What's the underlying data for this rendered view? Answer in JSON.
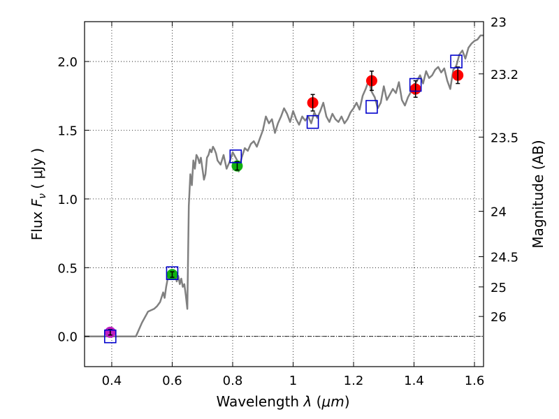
{
  "chart_data": {
    "type": "scatter",
    "title": "",
    "xlabel_prefix": "Wavelength  ",
    "xlabel_symbol": "λ",
    "xlabel_unit_open": " (",
    "xlabel_unit": "μm",
    "xlabel_unit_close": ")",
    "ylabel_prefix": "Flux  ",
    "ylabel_symbol": "F",
    "ylabel_subscript": "ν",
    "ylabel_unit": "  ( μJy )",
    "y2label": "Magnitude (AB)",
    "xlim": [
      0.31,
      1.63
    ],
    "ylim": [
      -0.22,
      2.29
    ],
    "grid": true,
    "x_ticks": [
      {
        "value": 0.4,
        "label": "0.4"
      },
      {
        "value": 0.6,
        "label": "0.6"
      },
      {
        "value": 0.8,
        "label": "0.8"
      },
      {
        "value": 1.0,
        "label": "1"
      },
      {
        "value": 1.2,
        "label": "1.2"
      },
      {
        "value": 1.4,
        "label": "1.4"
      },
      {
        "value": 1.6,
        "label": "1.6"
      }
    ],
    "y_ticks": [
      {
        "value": 0.0,
        "label": "0.0"
      },
      {
        "value": 0.5,
        "label": "0.5"
      },
      {
        "value": 1.0,
        "label": "1.0"
      },
      {
        "value": 1.5,
        "label": "1.5"
      },
      {
        "value": 2.0,
        "label": "2.0"
      }
    ],
    "y2_ticks": [
      {
        "flux": 2.29,
        "label": "23"
      },
      {
        "flux": 1.91,
        "label": "23.2"
      },
      {
        "flux": 1.45,
        "label": "23.5"
      },
      {
        "flux": 0.91,
        "label": "24"
      },
      {
        "flux": 0.58,
        "label": "24.5"
      },
      {
        "flux": 0.36,
        "label": "25"
      },
      {
        "flux": 0.145,
        "label": "26"
      }
    ],
    "zero_line": 0.0,
    "template_spectrum": {
      "name": "best-fit template",
      "color": "#808080",
      "x": [
        0.31,
        0.48,
        0.5,
        0.52,
        0.54,
        0.55,
        0.56,
        0.57,
        0.575,
        0.58,
        0.585,
        0.59,
        0.595,
        0.6,
        0.605,
        0.61,
        0.615,
        0.62,
        0.625,
        0.63,
        0.635,
        0.64,
        0.645,
        0.65,
        0.655,
        0.66,
        0.665,
        0.67,
        0.675,
        0.68,
        0.685,
        0.69,
        0.695,
        0.7,
        0.705,
        0.71,
        0.715,
        0.72,
        0.725,
        0.73,
        0.735,
        0.74,
        0.745,
        0.75,
        0.76,
        0.77,
        0.78,
        0.79,
        0.8,
        0.81,
        0.815,
        0.82,
        0.825,
        0.83,
        0.84,
        0.85,
        0.86,
        0.87,
        0.88,
        0.89,
        0.9,
        0.91,
        0.92,
        0.93,
        0.94,
        0.95,
        0.96,
        0.97,
        0.98,
        0.99,
        1.0,
        1.01,
        1.02,
        1.03,
        1.04,
        1.05,
        1.06,
        1.07,
        1.08,
        1.09,
        1.1,
        1.11,
        1.12,
        1.13,
        1.14,
        1.15,
        1.16,
        1.17,
        1.18,
        1.19,
        1.2,
        1.21,
        1.22,
        1.23,
        1.24,
        1.25,
        1.26,
        1.27,
        1.28,
        1.29,
        1.3,
        1.31,
        1.32,
        1.33,
        1.34,
        1.35,
        1.36,
        1.37,
        1.38,
        1.39,
        1.4,
        1.41,
        1.42,
        1.43,
        1.44,
        1.45,
        1.46,
        1.47,
        1.48,
        1.49,
        1.5,
        1.51,
        1.52,
        1.53,
        1.54,
        1.55,
        1.56,
        1.57,
        1.58,
        1.59,
        1.6,
        1.61,
        1.62,
        1.63
      ],
      "y": [
        0.0,
        0.0,
        0.1,
        0.18,
        0.2,
        0.22,
        0.25,
        0.32,
        0.28,
        0.36,
        0.42,
        0.47,
        0.44,
        0.47,
        0.42,
        0.46,
        0.4,
        0.44,
        0.38,
        0.42,
        0.36,
        0.38,
        0.3,
        0.2,
        0.95,
        1.18,
        1.1,
        1.28,
        1.22,
        1.32,
        1.3,
        1.26,
        1.3,
        1.22,
        1.14,
        1.18,
        1.3,
        1.32,
        1.36,
        1.34,
        1.38,
        1.36,
        1.33,
        1.28,
        1.25,
        1.32,
        1.22,
        1.27,
        1.34,
        1.3,
        1.28,
        1.2,
        1.26,
        1.3,
        1.37,
        1.35,
        1.4,
        1.42,
        1.38,
        1.44,
        1.5,
        1.6,
        1.55,
        1.58,
        1.48,
        1.55,
        1.6,
        1.66,
        1.62,
        1.56,
        1.64,
        1.58,
        1.54,
        1.6,
        1.57,
        1.6,
        1.55,
        1.63,
        1.59,
        1.64,
        1.7,
        1.6,
        1.56,
        1.62,
        1.58,
        1.56,
        1.6,
        1.55,
        1.58,
        1.63,
        1.66,
        1.7,
        1.65,
        1.75,
        1.8,
        1.86,
        1.78,
        1.74,
        1.66,
        1.7,
        1.82,
        1.72,
        1.76,
        1.8,
        1.77,
        1.85,
        1.72,
        1.68,
        1.74,
        1.78,
        1.82,
        1.86,
        1.9,
        1.84,
        1.93,
        1.88,
        1.9,
        1.94,
        1.96,
        1.92,
        1.95,
        1.86,
        1.8,
        1.94,
        1.97,
        2.05,
        2.08,
        2.02,
        2.1,
        2.13,
        2.15,
        2.16,
        2.19,
        2.19
      ]
    },
    "series": [
      {
        "name": "magenta point",
        "color": "#c020c0",
        "marker": "circle",
        "points": [
          {
            "x": 0.395,
            "y": 0.03,
            "err": 0.02
          }
        ]
      },
      {
        "name": "green points",
        "color": "#10b010",
        "marker": "circle",
        "points": [
          {
            "x": 0.6,
            "y": 0.45,
            "err": 0.02
          },
          {
            "x": 0.815,
            "y": 1.24,
            "err": 0.03
          }
        ]
      },
      {
        "name": "red points",
        "color": "#ff0000",
        "marker": "circle",
        "points": [
          {
            "x": 1.065,
            "y": 1.7,
            "err": 0.06
          },
          {
            "x": 1.26,
            "y": 1.86,
            "err": 0.07
          },
          {
            "x": 1.405,
            "y": 1.8,
            "err": 0.06
          },
          {
            "x": 1.545,
            "y": 1.9,
            "err": 0.06
          }
        ]
      },
      {
        "name": "template band flux",
        "color": "#0000cc",
        "marker": "open-square",
        "points": [
          {
            "x": 0.395,
            "y": 0.0
          },
          {
            "x": 0.6,
            "y": 0.46
          },
          {
            "x": 0.81,
            "y": 1.31
          },
          {
            "x": 1.065,
            "y": 1.56
          },
          {
            "x": 1.26,
            "y": 1.67
          },
          {
            "x": 1.405,
            "y": 1.83
          },
          {
            "x": 1.54,
            "y": 2.0
          }
        ]
      }
    ]
  }
}
